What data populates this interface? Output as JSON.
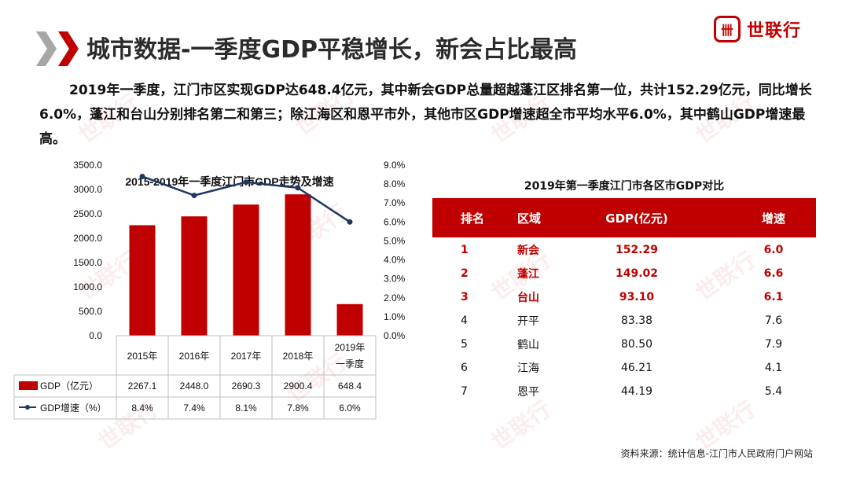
{
  "header": {
    "title": "城市数据-一季度GDP平稳增长，新会占比最高",
    "logo_mark": "卌",
    "logo_text": "世联行"
  },
  "intro": "2019年一季度，江门市区实现GDP达648.4亿元，其中新会GDP总量超越蓬江区排名第一位，共计152.29亿元，同比增长6.0%，蓬江和台山分别排名第二和第三；除江海区和恩平市外，其他市区GDP增速超全市平均水平6.0%，其中鹤山GDP增速最高。",
  "watermark": "世联行",
  "colors": {
    "brand": "#c00000",
    "bar": "#c00000",
    "line": "#1f3864"
  },
  "chart_data": {
    "type": "bar",
    "title": "2015-2019年一季度江门市GDP走势及增速",
    "categories": [
      "2015年",
      "2016年",
      "2017年",
      "2018年",
      "2019年一季度"
    ],
    "category_lines": [
      [
        "2015年"
      ],
      [
        "2016年"
      ],
      [
        "2017年"
      ],
      [
        "2018年"
      ],
      [
        "2019年",
        "一季度"
      ]
    ],
    "series": [
      {
        "name": "GDP（亿元）",
        "type": "bar",
        "axis": "left",
        "values": [
          2267.1,
          2448.0,
          2690.3,
          2900.4,
          648.4
        ]
      },
      {
        "name": "GDP增速（%）",
        "type": "line",
        "axis": "right",
        "values": [
          8.4,
          7.4,
          8.1,
          7.8,
          6.0
        ]
      }
    ],
    "table_values": [
      [
        "2267.1",
        "2448.0",
        "2690.3",
        "2900.4",
        "648.4"
      ],
      [
        "8.4%",
        "7.4%",
        "8.1%",
        "7.8%",
        "6.0%"
      ]
    ],
    "y_left": {
      "min": 0,
      "max": 3500,
      "step": 500,
      "ticks": [
        "0.0",
        "500.0",
        "1000.0",
        "1500.0",
        "2000.0",
        "2500.0",
        "3000.0",
        "3500.0"
      ]
    },
    "y_right": {
      "min": 0,
      "max": 9,
      "step": 1,
      "ticks": [
        "0.0%",
        "1.0%",
        "2.0%",
        "3.0%",
        "4.0%",
        "5.0%",
        "6.0%",
        "7.0%",
        "8.0%",
        "9.0%"
      ]
    },
    "grid": false,
    "legend": "bottom-table"
  },
  "table": {
    "title": "2019年第一季度江门市各区市GDP对比",
    "headers": [
      "排名",
      "区域",
      "GDP(亿元)",
      "增速"
    ],
    "rows": [
      [
        "1",
        "新会",
        "152.29",
        "6.0"
      ],
      [
        "2",
        "蓬江",
        "149.02",
        "6.6"
      ],
      [
        "3",
        "台山",
        "93.10",
        "6.1"
      ],
      [
        "4",
        "开平",
        "83.38",
        "7.6"
      ],
      [
        "5",
        "鹤山",
        "80.50",
        "7.9"
      ],
      [
        "6",
        "江海",
        "46.21",
        "4.1"
      ],
      [
        "7",
        "恩平",
        "44.19",
        "5.4"
      ]
    ]
  },
  "source": "资料来源：统计信息-江门市人民政府门户网站"
}
